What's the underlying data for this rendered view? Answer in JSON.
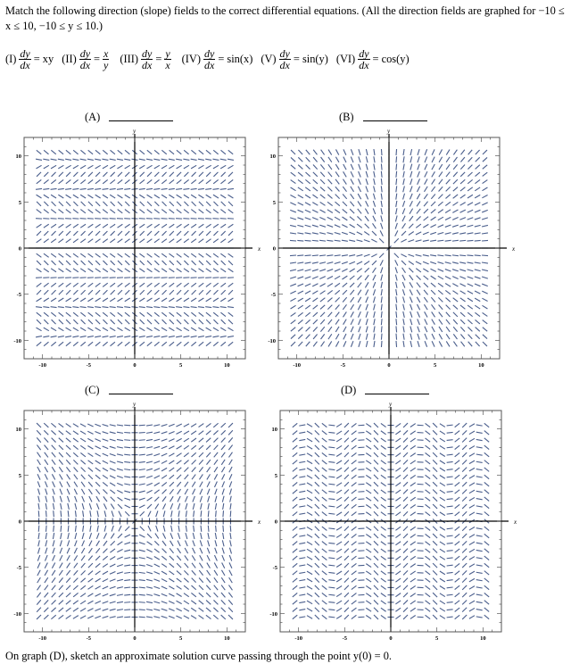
{
  "intro": "Match the following direction (slope) fields to the correct differential equations. (All the direction fields are graphed for −10 ≤ x ≤ 10, −10 ≤ y ≤ 10.)",
  "equations": [
    {
      "label": "(I)",
      "num": "dy",
      "den": "dx",
      "rhs": "= xy"
    },
    {
      "label": "(II)",
      "num": "dy",
      "den": "dx",
      "rhs_frac": {
        "num": "x",
        "den": "y"
      }
    },
    {
      "label": "(III)",
      "num": "dy",
      "den": "dx",
      "rhs_frac": {
        "num": "y",
        "den": "x"
      }
    },
    {
      "label": "(IV)",
      "num": "dy",
      "den": "dx",
      "rhs": "= sin(x)"
    },
    {
      "label": "(V)",
      "num": "dy",
      "den": "dx",
      "rhs": "= sin(y)"
    },
    {
      "label": "(VI)",
      "num": "dy",
      "den": "dx",
      "rhs": "= cos(y)"
    }
  ],
  "equals": "=",
  "footer": "On graph (D), sketch an approximate solution curve passing through the point y(0) = 0.",
  "line_color": "#4a5e8c",
  "chart_data": [
    {
      "type": "direction-field",
      "label": "(A)",
      "field": "sin(y)",
      "xlabel": "x",
      "ylabel": "y",
      "xlim": [
        -12,
        12
      ],
      "ylim": [
        -12,
        12
      ],
      "xticks": [
        "-10",
        "-5",
        "0",
        "5",
        "10"
      ],
      "yticks": [
        "10",
        "5",
        "0",
        "-5",
        "-10"
      ]
    },
    {
      "type": "direction-field",
      "label": "(B)",
      "field": "y/x",
      "xlabel": "x",
      "ylabel": "y",
      "xlim": [
        -12,
        12
      ],
      "ylim": [
        -12,
        12
      ],
      "xticks": [
        "-10",
        "-5",
        "0",
        "5",
        "10"
      ],
      "yticks": [
        "10",
        "5",
        "0",
        "-5",
        "-10"
      ]
    },
    {
      "type": "direction-field",
      "label": "(C)",
      "field": "x/y",
      "xlabel": "x",
      "ylabel": "y",
      "xlim": [
        -12,
        12
      ],
      "ylim": [
        -12,
        12
      ],
      "xticks": [
        "-10",
        "-5",
        "0",
        "5",
        "10"
      ],
      "yticks": [
        "10",
        "5",
        "0",
        "-5",
        "-10"
      ]
    },
    {
      "type": "direction-field",
      "label": "(D)",
      "field": "sin(x)",
      "xlabel": "x",
      "ylabel": "y",
      "xlim": [
        -12,
        12
      ],
      "ylim": [
        -12,
        12
      ],
      "xticks": [
        "-10",
        "-5",
        "0",
        "5",
        "10"
      ],
      "yticks": [
        "10",
        "5",
        "0",
        "-5",
        "-10"
      ]
    }
  ]
}
